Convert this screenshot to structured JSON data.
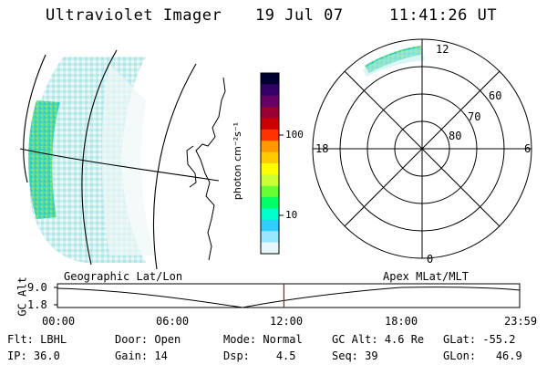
{
  "header": {
    "instrument": "Ultraviolet Imager",
    "date": "19 Jul 07",
    "time": "11:41:26 UT"
  },
  "colorbar": {
    "unit_label": "photon cm⁻²s⁻¹",
    "ticks": [
      "100",
      "10"
    ],
    "colors": [
      "#000033",
      "#330066",
      "#660066",
      "#990033",
      "#cc0000",
      "#ff3300",
      "#ff9900",
      "#ffcc00",
      "#ffff00",
      "#ccff33",
      "#66ff33",
      "#00ff66",
      "#00ffcc",
      "#33ccff",
      "#99e6ff",
      "#e6f7fa"
    ]
  },
  "polar_plot": {
    "mlt_labels": {
      "top": "12",
      "left": "18",
      "right": "6",
      "bottom": "0"
    },
    "lat_labels": [
      "60",
      "70",
      "80"
    ]
  },
  "timeline": {
    "y_axis_label": "GC Alt",
    "y_max": "9.0",
    "y_min": "1.8",
    "left_title": "Geographic Lat/Lon",
    "right_title": "Apex  MLat/MLT",
    "x_ticks": [
      "00:00",
      "06:00",
      "12:00",
      "18:00",
      "23:59"
    ],
    "current_time_fraction": 0.49
  },
  "status": {
    "row1": [
      {
        "k": "Flt:",
        "v": "LBHL"
      },
      {
        "k": "Door:",
        "v": "Open"
      },
      {
        "k": "Mode:",
        "v": "Normal"
      },
      {
        "k": "GC Alt:",
        "v": "4.6 Re"
      },
      {
        "k": "GLat:",
        "v": "-55.2"
      }
    ],
    "row2": [
      {
        "k": "IP:",
        "v": "36.0"
      },
      {
        "k": "Gain:",
        "v": "14"
      },
      {
        "k": "Dsp:",
        "v": "4.5"
      },
      {
        "k": "Seq:",
        "v": "39"
      },
      {
        "k": "GLon:",
        "v": "46.9"
      }
    ]
  }
}
